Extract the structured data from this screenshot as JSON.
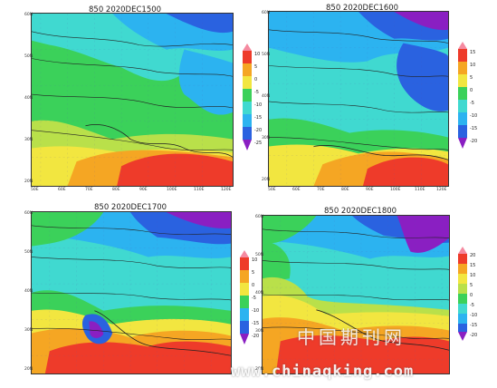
{
  "panels": [
    {
      "title": "850  2020DEC1500",
      "cbar": [
        "10",
        "5",
        "0",
        "-5",
        "-10",
        "-15",
        "-20",
        "-25"
      ]
    },
    {
      "title": "850  2020DEC1600",
      "cbar": [
        "15",
        "10",
        "5",
        "0",
        "-5",
        "-10",
        "-15",
        "-20"
      ]
    },
    {
      "title": "850  2020DEC1700",
      "cbar": [
        "10",
        "5",
        "0",
        "-5",
        "-10",
        "-15",
        "-20"
      ]
    },
    {
      "title": "850  2020DEC1800",
      "cbar": [
        "20",
        "15",
        "10",
        "5",
        "0",
        "-5",
        "-10",
        "-15",
        "-20"
      ]
    }
  ],
  "lon_ticks": [
    "50E",
    "60E",
    "70E",
    "80E",
    "90E",
    "100E",
    "110E",
    "120E"
  ],
  "lat_ticks": [
    "60N",
    "50N",
    "40N",
    "30N",
    "20N"
  ],
  "watermark_cn": "中国期刊网",
  "watermark": "www.chinaqking.com",
  "colors": {
    "purple": "#8a1fc2",
    "violet": "#b43fd6",
    "blue": "#2a62e0",
    "skyblue": "#2cb3f0",
    "cyan": "#40d9d0",
    "green": "#3bd15a",
    "lime": "#b9e04a",
    "yellow": "#f2e640",
    "orange": "#f5a623",
    "red": "#ee3b2a",
    "pink": "#f58aa0"
  }
}
